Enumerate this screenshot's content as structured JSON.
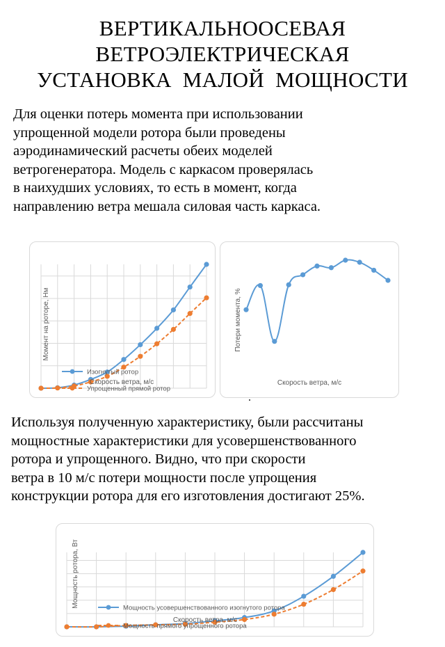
{
  "title_lines": [
    "ВЕРТИКАЛЬНООСЕВАЯ",
    "ВЕТРОЭЛЕКТРИЧЕСКАЯ",
    "УСТАНОВКА  МАЛОЙ  МОЩНОСТИ"
  ],
  "paragraph1": [
    "Для оценки потерь момента при использовании",
    "упрощенной модели ротора были проведены",
    "аэродинамический расчеты обеих моделей",
    "ветрогенератора. Модель с каркасом проверялась",
    "в наихудших условиях, то есть в момент, когда",
    "направлению ветра мешала силовая часть каркаса."
  ],
  "paragraph2": [
    "Используя полученную характеристику, были рассчитаны",
    "мощностные характеристики для усовершенствованного",
    "ротора и упрощенного. Видно, что при скорости",
    "ветра в 10 м/с потери мощности после упрощения",
    "конструкции ротора для его изготовления достигают 25%."
  ],
  "chart_data": [
    {
      "type": "line",
      "ylabel": "Момент на роторе, Нм",
      "xlabel": "Скорость ветра, м/с",
      "x": [
        1,
        2,
        3,
        4,
        5,
        6,
        7,
        8,
        9,
        10,
        11
      ],
      "series": [
        {
          "name": "Изогнутый ротор",
          "color": "#5b9bd5",
          "style": "solid",
          "values": [
            0.0,
            0.2,
            1.4,
            3.9,
            7.2,
            12.8,
            19.4,
            26.7,
            34.9,
            45.1,
            55.2
          ]
        },
        {
          "name": "Упрощенный прямой ротор",
          "color": "#ed7d31",
          "style": "dashed",
          "values": [
            0.0,
            0.1,
            1.0,
            2.8,
            5.3,
            9.4,
            14.2,
            19.8,
            26.2,
            33.3,
            40.3
          ]
        }
      ],
      "grid": true,
      "legend_position": "bottom-left"
    },
    {
      "type": "line",
      "ylabel": "Потери момента, %",
      "xlabel": "Скорость ветра, м/с",
      "x": [
        1,
        2,
        3,
        4,
        5,
        6,
        7,
        8,
        9,
        10,
        11
      ],
      "series": [
        {
          "name": "",
          "color": "#5b9bd5",
          "style": "solid",
          "values": [
            58.9,
            80.8,
            30.2,
            81.5,
            90.6,
            98.5,
            97.0,
            103.8,
            101.9,
            94.7,
            85.5
          ]
        }
      ],
      "grid": false
    },
    {
      "type": "line",
      "ylabel": "Мощность ротора, Вт",
      "xlabel": "Скорость ветра, м/с",
      "x": [
        1,
        2,
        3,
        4,
        5,
        6,
        7,
        8,
        9,
        10,
        11
      ],
      "series": [
        {
          "name": "Мощность усовершенствованного изогнутого ротора",
          "color": "#5b9bd5",
          "style": "solid",
          "values": [
            0.0,
            0.0,
            0.5,
            1.5,
            2.5,
            4.5,
            7.0,
            12.0,
            23.0,
            38.0,
            56.0
          ]
        },
        {
          "name": "Мощность прямого упрощенного ротора",
          "color": "#ed7d31",
          "style": "dashed",
          "values": [
            0.0,
            0.0,
            1.0,
            1.5,
            2.0,
            3.5,
            5.5,
            9.5,
            17.0,
            28.0,
            42.0
          ]
        }
      ],
      "grid": true,
      "legend_position": "bottom-left"
    }
  ]
}
